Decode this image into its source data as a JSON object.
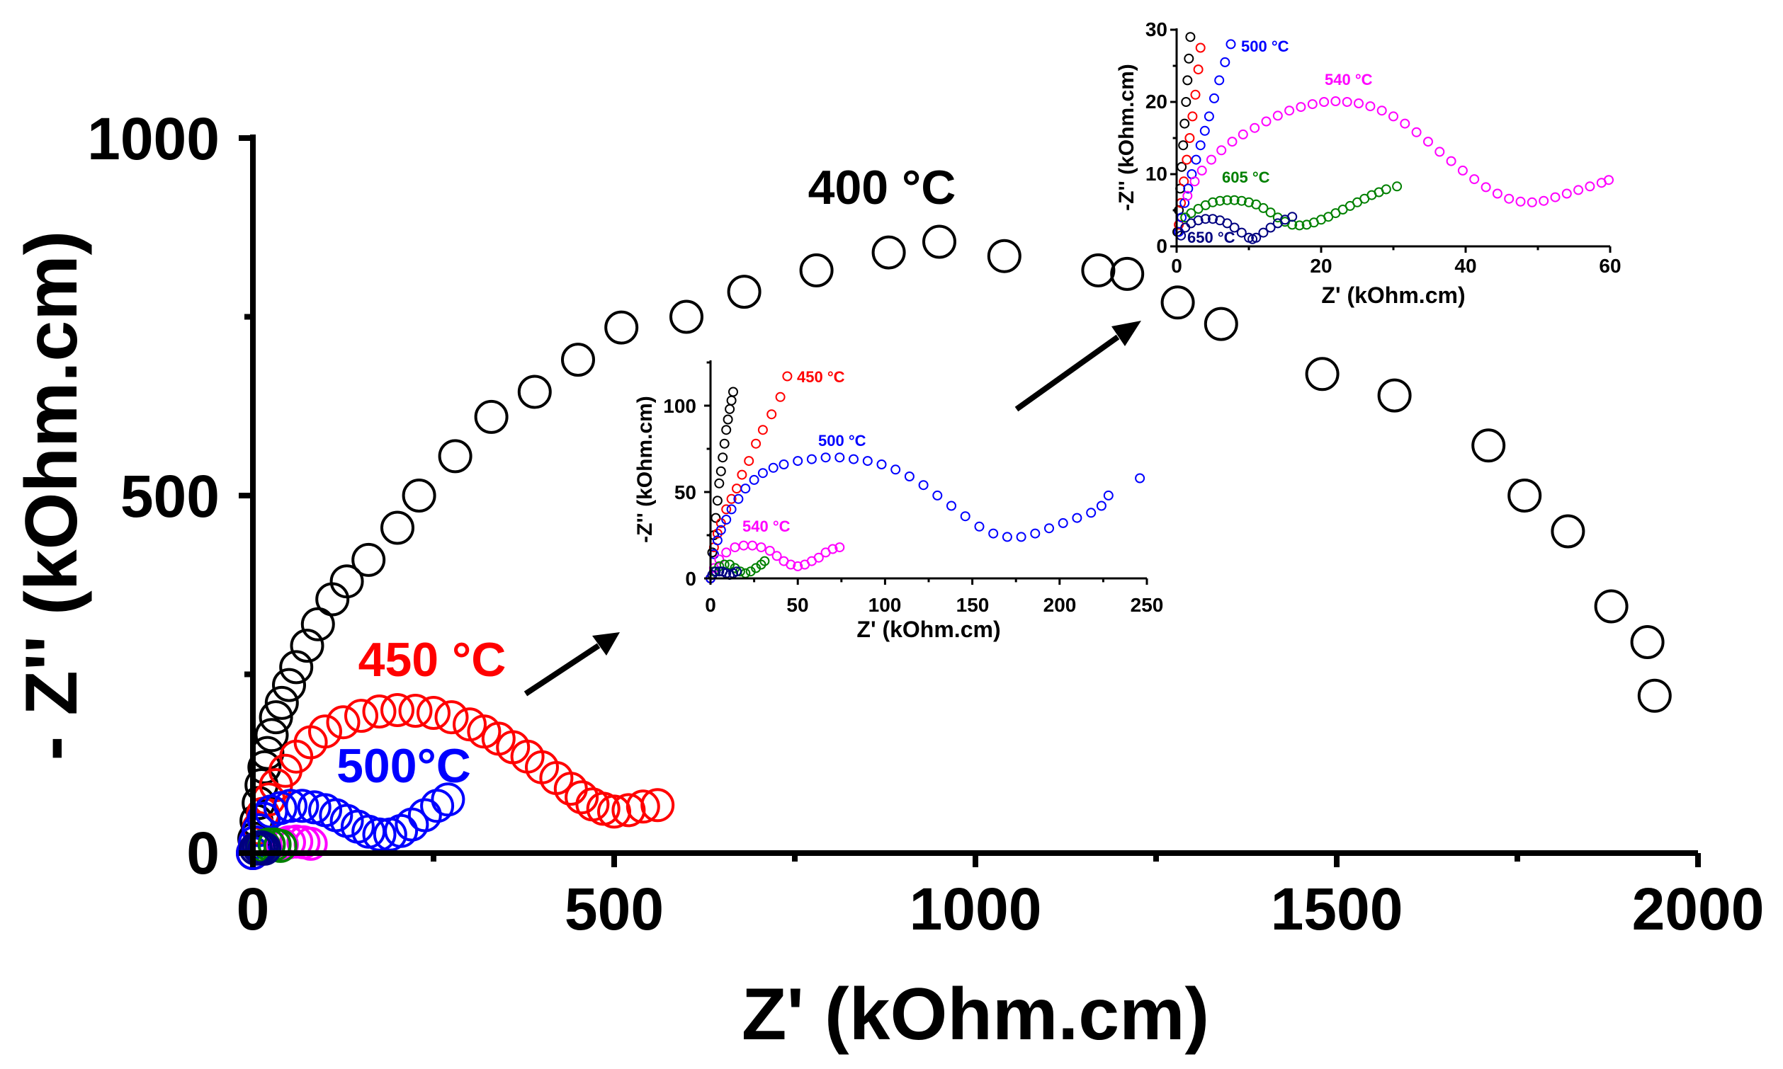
{
  "chart_data": [
    {
      "id": "main",
      "type": "scatter",
      "title": "",
      "xlabel": "Z' (kOhm.cm)",
      "ylabel": "- Z'' (kOhm.cm)",
      "xlim": [
        0,
        2000
      ],
      "ylim": [
        0,
        1000
      ],
      "xticks": [
        "0",
        "500",
        "1000",
        "1500",
        "2000"
      ],
      "yticks": [
        "0",
        "500",
        "1000"
      ],
      "annotations": [
        {
          "text": "400 °C",
          "color": "#000000"
        },
        {
          "text": "450 °C",
          "color": "#ff0000"
        },
        {
          "text": "500°C",
          "color": "#0000ff"
        }
      ],
      "series": [
        {
          "name": "400 °C",
          "color": "#000000",
          "x": [
            0,
            2,
            5,
            8,
            12,
            16,
            20,
            26,
            32,
            40,
            50,
            60,
            75,
            90,
            110,
            130,
            160,
            200,
            230,
            280,
            330,
            390,
            450,
            510,
            600,
            680,
            780,
            880,
            950,
            1040,
            1170,
            1210,
            1280,
            1340,
            1480,
            1580,
            1710,
            1760,
            1820,
            1880,
            1930,
            1940
          ],
          "y": [
            0,
            20,
            45,
            70,
            95,
            120,
            140,
            165,
            190,
            210,
            235,
            260,
            290,
            320,
            355,
            380,
            410,
            455,
            500,
            555,
            610,
            645,
            690,
            735,
            750,
            785,
            815,
            840,
            855,
            835,
            815,
            810,
            770,
            740,
            670,
            640,
            570,
            500,
            450,
            345,
            295,
            220
          ]
        },
        {
          "name": "450 °C",
          "color": "#ff0000",
          "x": [
            0,
            3,
            8,
            14,
            22,
            32,
            45,
            60,
            80,
            100,
            125,
            150,
            175,
            200,
            225,
            250,
            275,
            300,
            320,
            340,
            360,
            380,
            400,
            420,
            440,
            455,
            470,
            485,
            500,
            520,
            540,
            560
          ],
          "y": [
            0,
            15,
            35,
            55,
            75,
            95,
            115,
            135,
            155,
            170,
            183,
            192,
            198,
            200,
            199,
            196,
            190,
            180,
            170,
            160,
            148,
            135,
            120,
            105,
            90,
            78,
            68,
            62,
            58,
            60,
            65,
            67
          ]
        },
        {
          "name": "500 °C",
          "color": "#0000ff",
          "x": [
            0,
            3,
            8,
            15,
            25,
            38,
            52,
            68,
            85,
            100,
            115,
            130,
            145,
            160,
            175,
            190,
            205,
            220,
            238,
            255,
            270
          ],
          "y": [
            0,
            15,
            32,
            48,
            58,
            63,
            66,
            66,
            64,
            60,
            53,
            45,
            37,
            30,
            26,
            26,
            31,
            40,
            53,
            66,
            75
          ]
        },
        {
          "name": "540 °C",
          "color": "#ff00ff",
          "x": [
            40,
            50,
            60,
            70,
            80
          ],
          "y": [
            12,
            15,
            16,
            15,
            13
          ]
        },
        {
          "name": "605 °C",
          "color": "#008000",
          "x": [
            15,
            22,
            30,
            38
          ],
          "y": [
            10,
            12,
            12,
            10
          ]
        },
        {
          "name": "650 °C",
          "color": "#000080",
          "x": [
            4,
            8,
            12,
            16
          ],
          "y": [
            6,
            8,
            8,
            6
          ]
        }
      ]
    },
    {
      "id": "inset1",
      "type": "scatter",
      "title": "",
      "xlabel": "Z' (kOhm.cm)",
      "ylabel": "-Z'' (kOhm.cm)",
      "xlim": [
        0,
        250
      ],
      "ylim": [
        0,
        125
      ],
      "xticks": [
        "0",
        "50",
        "100",
        "150",
        "200",
        "250"
      ],
      "yticks": [
        "0",
        "50",
        "100"
      ],
      "annotations": [
        {
          "text": "450 °C",
          "color": "#ff0000"
        },
        {
          "text": "500 °C",
          "color": "#0000ff"
        },
        {
          "text": "540 °C",
          "color": "#ff00ff"
        }
      ],
      "series": [
        {
          "name": "400 °C",
          "color": "#000000",
          "x": [
            0,
            1,
            2,
            3,
            4,
            5,
            6,
            7,
            8,
            9,
            10,
            11,
            12,
            13
          ],
          "y": [
            0,
            15,
            25,
            35,
            45,
            55,
            62,
            70,
            78,
            86,
            92,
            98,
            103,
            108
          ]
        },
        {
          "name": "450 °C",
          "color": "#ff0000",
          "x": [
            0,
            2,
            4,
            6,
            9,
            12,
            15,
            18,
            22,
            26,
            30,
            35,
            40,
            44
          ],
          "y": [
            0,
            18,
            26,
            32,
            40,
            46,
            52,
            60,
            68,
            78,
            86,
            95,
            105,
            117
          ]
        },
        {
          "name": "500 °C",
          "color": "#0000ff",
          "x": [
            0,
            2,
            4,
            6,
            9,
            12,
            16,
            20,
            25,
            30,
            36,
            42,
            50,
            58,
            66,
            74,
            82,
            90,
            98,
            106,
            114,
            122,
            130,
            138,
            146,
            154,
            162,
            170,
            178,
            186,
            194,
            202,
            210,
            218,
            224,
            228,
            246
          ],
          "y": [
            0,
            14,
            22,
            28,
            34,
            40,
            46,
            52,
            57,
            61,
            64,
            66,
            68,
            69,
            70,
            70,
            69,
            68,
            66,
            63,
            59,
            54,
            48,
            42,
            36,
            30,
            26,
            24,
            24,
            26,
            29,
            32,
            35,
            38,
            42,
            48,
            58
          ]
        },
        {
          "name": "540 °C",
          "color": "#ff00ff",
          "x": [
            2,
            5,
            9,
            14,
            19,
            24,
            29,
            34,
            38,
            42,
            46,
            50,
            54,
            58,
            62,
            66,
            70,
            74
          ],
          "y": [
            6,
            11,
            15,
            18,
            19,
            19,
            18,
            16,
            13,
            10,
            8,
            7,
            8,
            10,
            12,
            15,
            17,
            18
          ]
        },
        {
          "name": "605 °C",
          "color": "#008000",
          "x": [
            2,
            5,
            8,
            11,
            14,
            17,
            20,
            23,
            26,
            29,
            31
          ],
          "y": [
            4,
            7,
            8,
            8,
            6,
            4,
            3,
            4,
            6,
            8,
            10
          ]
        },
        {
          "name": "650 °C",
          "color": "#000080",
          "x": [
            1,
            3,
            5,
            7,
            9,
            11,
            13,
            15
          ],
          "y": [
            2,
            4,
            4,
            4,
            3,
            2,
            3,
            4
          ]
        }
      ]
    },
    {
      "id": "inset2",
      "type": "scatter",
      "title": "",
      "xlabel": "Z' (kOhm.cm)",
      "ylabel": "-Z'' (kOhm.cm)",
      "xlim": [
        0,
        60
      ],
      "ylim": [
        0,
        30
      ],
      "xticks": [
        "0",
        "20",
        "40",
        "60"
      ],
      "yticks": [
        "0",
        "10",
        "20",
        "30"
      ],
      "annotations": [
        {
          "text": "500 °C",
          "color": "#0000ff"
        },
        {
          "text": "540 °C",
          "color": "#ff00ff"
        },
        {
          "text": "605 °C",
          "color": "#008000"
        },
        {
          "text": "650 °C",
          "color": "#000080"
        }
      ],
      "series": [
        {
          "name": "400 °C",
          "color": "#000000",
          "x": [
            0.1,
            0.3,
            0.5,
            0.7,
            0.9,
            1.1,
            1.3,
            1.5,
            1.7,
            1.9
          ],
          "y": [
            2,
            5,
            8,
            11,
            14,
            17,
            20,
            23,
            26,
            29
          ]
        },
        {
          "name": "450 °C",
          "color": "#ff0000",
          "x": [
            0.3,
            0.6,
            1.0,
            1.4,
            1.8,
            2.2,
            2.6,
            3.0,
            3.3
          ],
          "y": [
            3,
            6,
            9,
            12,
            15,
            18,
            21,
            24.5,
            27.5
          ]
        },
        {
          "name": "500 °C",
          "color": "#0000ff",
          "x": [
            0.3,
            0.7,
            1.1,
            1.6,
            2.1,
            2.7,
            3.3,
            3.9,
            4.5,
            5.2,
            5.9,
            6.7,
            7.5
          ],
          "y": [
            2,
            4,
            6,
            8,
            10,
            12,
            14,
            16,
            18,
            20.5,
            23,
            25.5,
            28
          ]
        },
        {
          "name": "540 °C",
          "color": "#ff00ff",
          "x": [
            1.5,
            2.5,
            3.5,
            4.8,
            6.2,
            7.7,
            9.2,
            10.8,
            12.4,
            14,
            15.6,
            17.2,
            18.8,
            20.4,
            22,
            23.6,
            25.2,
            26.8,
            28.4,
            30,
            31.6,
            33.2,
            34.8,
            36.4,
            38,
            39.6,
            41.2,
            42.8,
            44.4,
            46,
            47.6,
            49.2,
            50.8,
            52.4,
            54,
            55.6,
            57.2,
            58.8,
            59.8
          ],
          "y": [
            7,
            9,
            10.5,
            12,
            13.3,
            14.5,
            15.5,
            16.4,
            17.3,
            18.1,
            18.8,
            19.3,
            19.7,
            20,
            20.1,
            20,
            19.8,
            19.4,
            18.8,
            18,
            17,
            15.8,
            14.5,
            13.1,
            11.8,
            10.5,
            9.3,
            8.2,
            7.3,
            6.6,
            6.2,
            6.1,
            6.3,
            6.8,
            7.3,
            7.8,
            8.3,
            8.8,
            9.2
          ]
        },
        {
          "name": "605 °C",
          "color": "#008000",
          "x": [
            1.2,
            2,
            3,
            4,
            5,
            6,
            7,
            8,
            9,
            10,
            11,
            12,
            13,
            14,
            15,
            16,
            17,
            18,
            19,
            20,
            21,
            22,
            23,
            24,
            25,
            26,
            27,
            28,
            29,
            30.5
          ],
          "y": [
            4,
            4.6,
            5.2,
            5.7,
            6.1,
            6.3,
            6.4,
            6.4,
            6.3,
            6.1,
            5.8,
            5.3,
            4.7,
            4.0,
            3.4,
            3.0,
            2.9,
            3.0,
            3.3,
            3.7,
            4.1,
            4.6,
            5.1,
            5.6,
            6.1,
            6.6,
            7.1,
            7.5,
            7.9,
            8.3
          ]
        },
        {
          "name": "650 °C",
          "color": "#000080",
          "x": [
            0.6,
            1.2,
            2,
            3,
            4,
            5,
            6,
            7,
            8,
            9,
            10,
            10.5,
            11,
            12,
            13,
            14,
            15,
            16
          ],
          "y": [
            1.5,
            2.6,
            3.2,
            3.6,
            3.8,
            3.8,
            3.6,
            3.2,
            2.6,
            1.9,
            1.2,
            1.0,
            1.2,
            1.9,
            2.6,
            3.2,
            3.7,
            4.1
          ]
        }
      ]
    }
  ]
}
